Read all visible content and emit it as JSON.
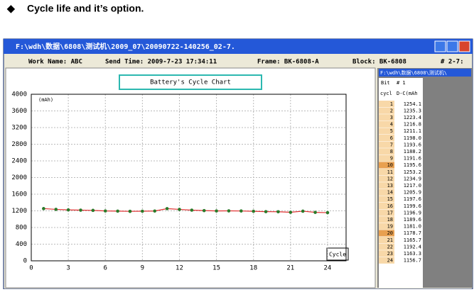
{
  "heading": "Cycle life and it’s option.",
  "window": {
    "title": "F:\\wdh\\数据\\6808\\测试机\\2009_07\\20090722-140256_02-7.",
    "work_name": "Work Name: ABC",
    "send_time": "Send Time: 2009-7-23 17:34:11",
    "frame": "Frame: BK-6808-A",
    "block": "Block: BK-6808",
    "channel": "# 2-7:",
    "dropdown": "F:\\wdh\\数据\\6808\\测试机\\"
  },
  "table": {
    "header1": [
      "Bit",
      "# 1"
    ],
    "header2": [
      "cycl",
      "D-C(mAh"
    ]
  },
  "chart_data": {
    "type": "line",
    "title": "Battery's Cycle Chart",
    "y_label": "(mAh)",
    "x_label": "Cycle",
    "x": [
      1,
      2,
      3,
      4,
      5,
      6,
      7,
      8,
      9,
      10,
      11,
      12,
      13,
      14,
      15,
      16,
      17,
      18,
      19,
      20,
      21,
      22,
      23,
      24
    ],
    "values": [
      1254.1,
      1235.3,
      1223.4,
      1216.8,
      1211.1,
      1198.0,
      1193.6,
      1188.2,
      1191.6,
      1195.6,
      1253.2,
      1234.9,
      1217.0,
      1205.9,
      1197.6,
      1199.6,
      1196.9,
      1189.6,
      1181.0,
      1178.7,
      1165.7,
      1192.4,
      1163.3,
      1156.7
    ],
    "value_labels": [
      "1254.1",
      "1235.3",
      "1223.4",
      "1216.8",
      "1211.1",
      "1198.0",
      "1193.6",
      "1188.2",
      "1191.6",
      "1195.6",
      "1253.2",
      "1234.9",
      "1217.0",
      "1205.9",
      "1197.6",
      "1199.6",
      "1196.9",
      "1189.6",
      "1181.0",
      "1178.7",
      "1165.7",
      "1192.4",
      "1163.3",
      "1156.7"
    ],
    "color": "#e03030",
    "marker_color": "#2a7a2a",
    "xlim": [
      0,
      25.5
    ],
    "xticks": [
      0,
      3,
      6,
      9,
      12,
      15,
      18,
      21,
      24
    ],
    "ylim": [
      0,
      4000
    ],
    "yticks": [
      0,
      400,
      800,
      1200,
      1600,
      2000,
      2400,
      2800,
      3200,
      3600,
      4000
    ],
    "grid": true
  }
}
